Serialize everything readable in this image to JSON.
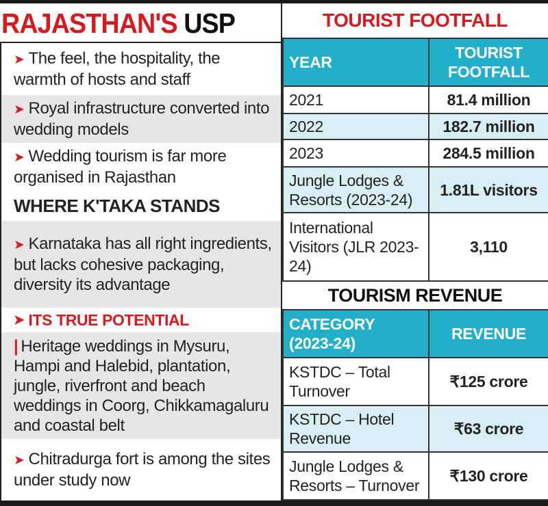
{
  "left": {
    "title_red": "RAJASTHAN'S",
    "title_black": "USP",
    "usp_items": [
      "The feel, the hospitality, the warmth of hosts and staff",
      "Royal infrastructure converted into wedding models",
      "Wedding tourism is far more organised in Rajasthan"
    ],
    "ktaka_heading": "WHERE K'TAKA STANDS",
    "ktaka_item": "Karnataka has all right ingredients, but lacks cohesive packaging, diversity its advantage",
    "potential_heading": "ITS TRUE POTENTIAL",
    "potential_text": "Heritage weddings in Mysuru, Hampi and Halebid, plantation, jungle, riverfront and beach weddings in Coorg, Chikkamagaluru and coastal belt",
    "last_item": "Chitradurga fort is among the sites under study now"
  },
  "footfall": {
    "title": "TOURIST FOOTFALL",
    "headers": [
      "YEAR",
      "TOURIST FOOTFALL"
    ],
    "rows": [
      [
        "2021",
        "81.4 million"
      ],
      [
        "2022",
        "182.7 million"
      ],
      [
        "2023",
        "284.5 million"
      ],
      [
        "Jungle Lodges & Resorts (2023-24)",
        "1.81L visitors"
      ],
      [
        "International Visitors (JLR 2023-24)",
        "3,110"
      ]
    ]
  },
  "revenue": {
    "title": "TOURISM REVENUE",
    "headers": [
      "CATEGORY (2023-24)",
      "REVENUE"
    ],
    "rows": [
      [
        "KSTDC – Total Turnover",
        "₹125 crore"
      ],
      [
        "KSTDC – Hotel Revenue",
        "₹63 crore"
      ],
      [
        "Jungle Lodges & Resorts – Turnover",
        "₹130 crore"
      ]
    ]
  },
  "colors": {
    "red": "#d71920",
    "teal": "#22afc9",
    "light_blue": "#d8edf4",
    "gray": "#e6e6e6"
  }
}
